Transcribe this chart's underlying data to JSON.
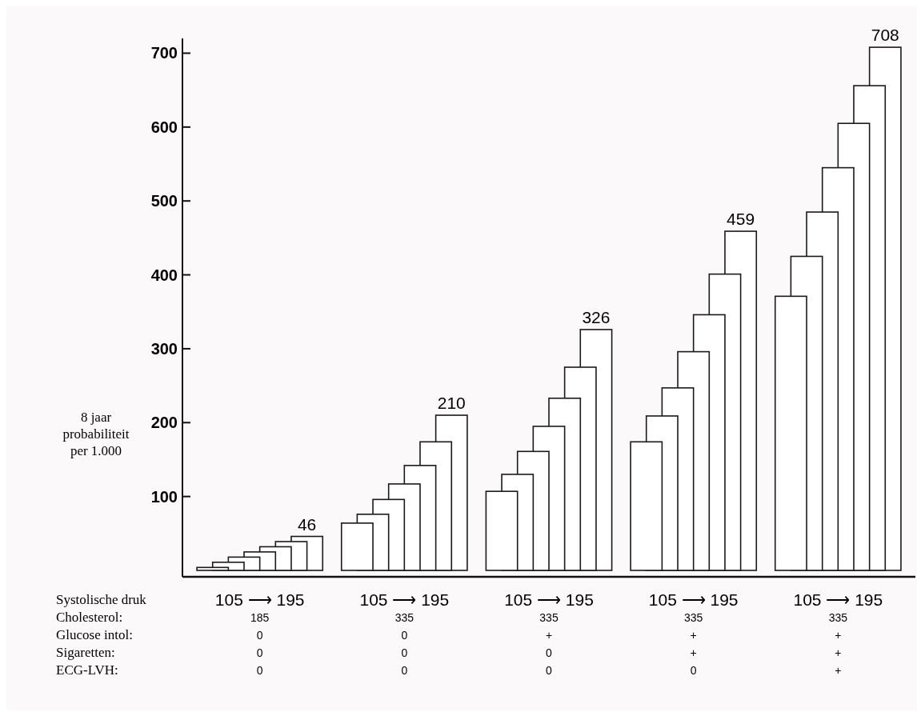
{
  "chart_data": {
    "type": "bar",
    "ylabel": "8 jaar probabiliteit per 1.000",
    "categories": [
      "105 ⟶ 195\n185\n0\n0\n0",
      "105 ⟶ 195\n335\n0\n0\n0",
      "105 ⟶ 195\n335\n+\n0\n0",
      "105 ⟶ 195\n335\n+\n+\n0",
      "105 ⟶ 195\n335\n+\n+\n+"
    ],
    "series": [
      {
        "color": "#ffffff",
        "values": [
          4,
          64,
          107,
          174,
          371
        ]
      },
      {
        "color": "#ffffff",
        "values": [
          11,
          76,
          130,
          209,
          425
        ]
      },
      {
        "color": "#ffffff",
        "values": [
          18,
          96,
          161,
          247,
          485
        ]
      },
      {
        "color": "#ffffff",
        "values": [
          25,
          117,
          195,
          296,
          545
        ]
      },
      {
        "color": "#ffffff",
        "values": [
          32,
          142,
          233,
          346,
          605
        ]
      },
      {
        "color": "#ffffff",
        "values": [
          39,
          174,
          275,
          401,
          656
        ]
      },
      {
        "color": "#ffffff",
        "values": [
          46,
          210,
          326,
          459,
          708
        ],
        "value_labels": [
          "46",
          "210",
          "326",
          "459",
          "708"
        ]
      }
    ],
    "ylim": [
      0,
      720
    ],
    "yticks": [
      100,
      200,
      300,
      400,
      500,
      600,
      700
    ],
    "annotations": [
      "Systolische druk",
      "Cholesterol:",
      "Glucose intol:",
      "Sigaretten:",
      "ECG-LVH:"
    ]
  }
}
